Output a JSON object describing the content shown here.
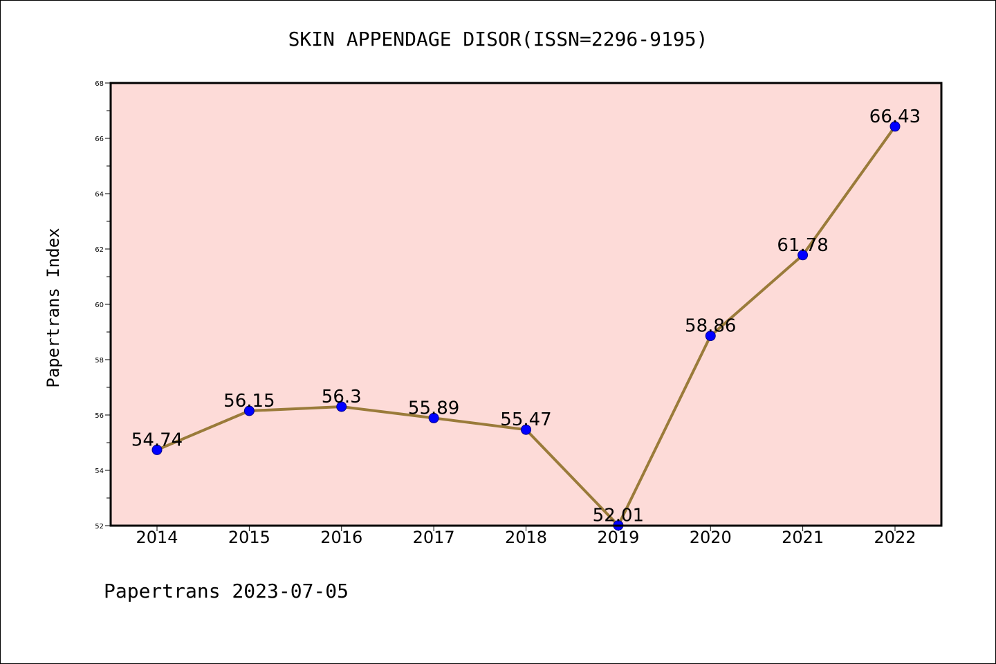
{
  "footer": "Papertrans 2023-07-05",
  "colors": {
    "plot_background": "#fddbd8",
    "line": "#9a7b3a",
    "marker": "#0000ff",
    "marker_edge": "#00008b",
    "axes": "#000000"
  },
  "chart_data": {
    "type": "line",
    "title": "SKIN APPENDAGE DISOR(ISSN=2296-9195)",
    "xlabel": "",
    "ylabel": "Papertrans Index",
    "categories": [
      "2014",
      "2015",
      "2016",
      "2017",
      "2018",
      "2019",
      "2020",
      "2021",
      "2022"
    ],
    "series": [
      {
        "values": [
          54.74,
          56.15,
          56.3,
          55.89,
          55.47,
          52.01,
          58.86,
          61.78,
          66.43
        ],
        "data_labels": [
          "54.74",
          "56.15",
          "56.3",
          "55.89",
          "55.47",
          "52.01",
          "58.86",
          "61.78",
          "66.43"
        ]
      }
    ],
    "ylim": [
      52,
      68
    ],
    "yticks": [
      "52",
      "54",
      "56",
      "58",
      "60",
      "62",
      "64",
      "66",
      "68"
    ],
    "grid": false,
    "legend": "none"
  }
}
